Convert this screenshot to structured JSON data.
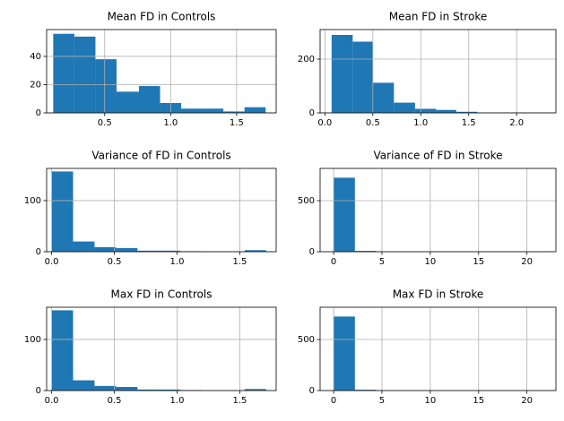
{
  "chart_data": [
    {
      "type": "histogram",
      "title": "Mean FD in Controls",
      "color": "#1f77b4",
      "grid": true,
      "bins": [
        0.11,
        0.27,
        0.43,
        0.59,
        0.76,
        0.92,
        1.08,
        1.24,
        1.4,
        1.56,
        1.72
      ],
      "values": [
        56,
        54,
        38,
        15,
        19,
        7,
        3,
        3,
        1,
        4
      ],
      "xlim": [
        0.06,
        1.8
      ],
      "xticks": [
        0.5,
        {
          "value": 1,
          "label": "1.0"
        },
        1.5
      ],
      "ylim": [
        0,
        59
      ],
      "yticks": [
        0,
        20,
        40
      ]
    },
    {
      "type": "histogram",
      "title": "Mean FD in Stroke",
      "color": "#1f77b4",
      "grid": true,
      "bins": [
        0.07,
        0.29,
        0.5,
        0.72,
        0.94,
        1.16,
        1.37,
        1.59,
        1.81,
        2.02,
        2.24
      ],
      "values": [
        290,
        265,
        112,
        38,
        15,
        11,
        4,
        1,
        1,
        1
      ],
      "xlim": [
        -0.05,
        2.41
      ],
      "xticks": [
        {
          "value": 0,
          "label": "0.0"
        },
        0.5,
        {
          "value": 1,
          "label": "1.0"
        },
        1.5,
        {
          "value": 2,
          "label": "2.0"
        }
      ],
      "ylim": [
        0,
        310
      ],
      "yticks": [
        0,
        200
      ]
    },
    {
      "type": "histogram",
      "title": "Variance of FD in Controls",
      "color": "#1f77b4",
      "grid": true,
      "bins": [
        0,
        0.171,
        0.342,
        0.513,
        0.684,
        0.855,
        1.026,
        1.197,
        1.368,
        1.539,
        1.71
      ],
      "values": [
        157,
        20,
        9,
        7,
        2,
        2,
        1,
        0,
        0,
        3
      ],
      "xlim": [
        -0.04,
        1.79
      ],
      "xticks": [
        {
          "value": 0,
          "label": "0.0"
        },
        0.5,
        {
          "value": 1,
          "label": "1.0"
        },
        1.5
      ],
      "ylim": [
        0,
        163
      ],
      "yticks": [
        0,
        100
      ]
    },
    {
      "type": "histogram",
      "title": "Variance of FD in Stroke",
      "color": "#1f77b4",
      "grid": true,
      "bins": [
        0,
        2.2,
        4.4,
        6.6,
        8.8,
        11,
        13.2,
        15.4,
        17.6,
        19.8,
        22
      ],
      "values": [
        725,
        8,
        2,
        1,
        1,
        0,
        0,
        0,
        0,
        1
      ],
      "xlim": [
        -1.4,
        23
      ],
      "xticks": [
        0,
        5,
        10,
        15,
        20
      ],
      "ylim": [
        0,
        816
      ],
      "yticks": [
        0,
        500
      ]
    },
    {
      "type": "histogram",
      "title": "Max FD in Controls",
      "color": "#1f77b4",
      "grid": true,
      "bins": [
        0,
        0.171,
        0.342,
        0.513,
        0.684,
        0.855,
        1.026,
        1.197,
        1.368,
        1.539,
        1.71
      ],
      "values": [
        157,
        20,
        9,
        7,
        2,
        2,
        1,
        0,
        0,
        3
      ],
      "xlim": [
        -0.04,
        1.79
      ],
      "xticks": [
        {
          "value": 0,
          "label": "0.0"
        },
        0.5,
        {
          "value": 1,
          "label": "1.0"
        },
        1.5
      ],
      "ylim": [
        0,
        163
      ],
      "yticks": [
        0,
        100
      ]
    },
    {
      "type": "histogram",
      "title": "Max FD in Stroke",
      "color": "#1f77b4",
      "grid": true,
      "bins": [
        0,
        2.2,
        4.4,
        6.6,
        8.8,
        11,
        13.2,
        15.4,
        17.6,
        19.8,
        22
      ],
      "values": [
        725,
        8,
        2,
        1,
        1,
        0,
        0,
        0,
        0,
        1
      ],
      "xlim": [
        -1.4,
        23
      ],
      "xticks": [
        0,
        5,
        10,
        15,
        20
      ],
      "ylim": [
        0,
        816
      ],
      "yticks": [
        0,
        500
      ]
    }
  ]
}
